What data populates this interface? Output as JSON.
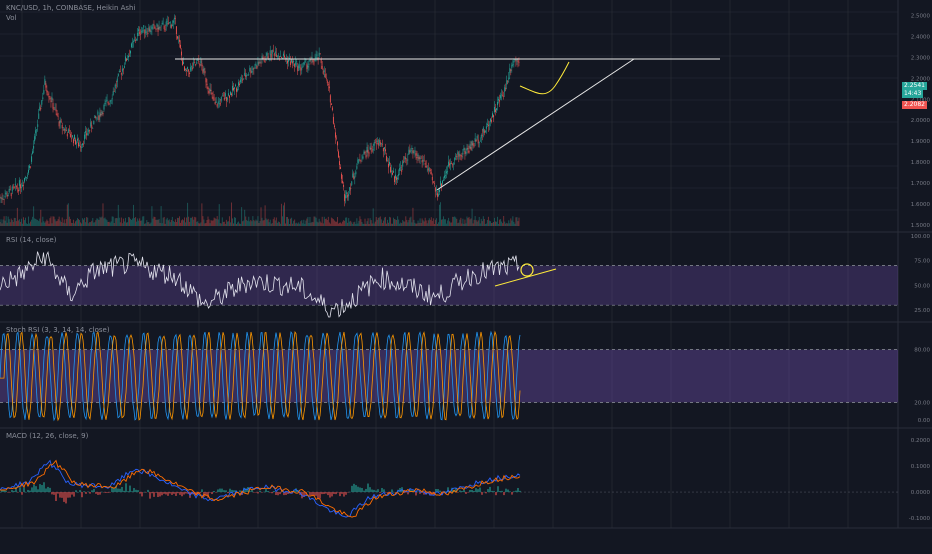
{
  "header": {
    "symbol_line": "KNC/USD, 1h, COINBASE, Heikin Ashi",
    "volume_label": "Vol"
  },
  "price_badges": {
    "last": "2.2541",
    "countdown": "14:43",
    "line": "2.2082"
  },
  "colors": {
    "background": "#131722",
    "grid": "#2a2e39",
    "up": "#26a69a",
    "down": "#ef5350",
    "rsi_line": "#e1e1ec",
    "band_fill": "#7e57c2",
    "stoch_k": "#2196f3",
    "stoch_d": "#ff9800",
    "macd_line": "#2962ff",
    "signal_line": "#ff6d00",
    "annotation_white": "#e8e8e8",
    "annotation_yellow": "#ffeb3b"
  },
  "chart_data": [
    {
      "type": "candlestick",
      "title": "KNC/USD, 1h, COINBASE, Heikin Ashi",
      "y_tick_labels": [
        "2.5000",
        "2.4000",
        "2.3000",
        "2.2000",
        "2.1000",
        "2.0000",
        "1.9000",
        "1.8000",
        "1.7000",
        "1.6000",
        "1.5000"
      ],
      "ylim": [
        1.5,
        2.55
      ],
      "candles_count": 510,
      "approx_close_path": [
        {
          "x": 0,
          "y": 1.63
        },
        {
          "x": 12,
          "y": 1.66
        },
        {
          "x": 22,
          "y": 1.7
        },
        {
          "x": 30,
          "y": 1.78
        },
        {
          "x": 45,
          "y": 2.18
        },
        {
          "x": 60,
          "y": 1.98
        },
        {
          "x": 80,
          "y": 1.88
        },
        {
          "x": 95,
          "y": 2.0
        },
        {
          "x": 110,
          "y": 2.1
        },
        {
          "x": 125,
          "y": 2.28
        },
        {
          "x": 140,
          "y": 2.43
        },
        {
          "x": 160,
          "y": 2.44
        },
        {
          "x": 175,
          "y": 2.47
        },
        {
          "x": 185,
          "y": 2.22
        },
        {
          "x": 200,
          "y": 2.28
        },
        {
          "x": 215,
          "y": 2.07
        },
        {
          "x": 235,
          "y": 2.15
        },
        {
          "x": 250,
          "y": 2.24
        },
        {
          "x": 275,
          "y": 2.33
        },
        {
          "x": 300,
          "y": 2.25
        },
        {
          "x": 320,
          "y": 2.3
        },
        {
          "x": 330,
          "y": 2.12
        },
        {
          "x": 345,
          "y": 1.62
        },
        {
          "x": 360,
          "y": 1.82
        },
        {
          "x": 380,
          "y": 1.9
        },
        {
          "x": 395,
          "y": 1.72
        },
        {
          "x": 410,
          "y": 1.85
        },
        {
          "x": 425,
          "y": 1.8
        },
        {
          "x": 437,
          "y": 1.65
        },
        {
          "x": 450,
          "y": 1.8
        },
        {
          "x": 470,
          "y": 1.87
        },
        {
          "x": 485,
          "y": 1.95
        },
        {
          "x": 495,
          "y": 2.05
        },
        {
          "x": 505,
          "y": 2.15
        },
        {
          "x": 512,
          "y": 2.28
        },
        {
          "x": 520,
          "y": 2.3
        }
      ],
      "annotations": [
        "horizontal resistance line",
        "rising support trendline",
        "projection curve (yellow)"
      ]
    },
    {
      "type": "line",
      "title": "RSI (14, close)",
      "y_tick_labels": [
        "100.00",
        "75.00",
        "50.00",
        "25.00"
      ],
      "bands": [
        70,
        30
      ],
      "ylim": [
        15,
        100
      ],
      "approx_values": [
        {
          "x": 0,
          "y": 52
        },
        {
          "x": 20,
          "y": 60
        },
        {
          "x": 45,
          "y": 80
        },
        {
          "x": 70,
          "y": 40
        },
        {
          "x": 95,
          "y": 65
        },
        {
          "x": 130,
          "y": 72
        },
        {
          "x": 175,
          "y": 60
        },
        {
          "x": 205,
          "y": 30
        },
        {
          "x": 250,
          "y": 55
        },
        {
          "x": 300,
          "y": 48
        },
        {
          "x": 330,
          "y": 25
        },
        {
          "x": 345,
          "y": 30
        },
        {
          "x": 380,
          "y": 58
        },
        {
          "x": 405,
          "y": 50
        },
        {
          "x": 437,
          "y": 38
        },
        {
          "x": 470,
          "y": 60
        },
        {
          "x": 495,
          "y": 66
        },
        {
          "x": 520,
          "y": 70
        }
      ]
    },
    {
      "type": "line",
      "title": "Stoch RSI (3, 3, 14, 14, close)",
      "y_tick_labels": [
        "80.00",
        "20.00",
        "0.00"
      ],
      "bands": [
        80,
        20
      ],
      "ylim": [
        0,
        100
      ],
      "series": [
        {
          "name": "%K",
          "oscillating_peaks": 34
        },
        {
          "name": "%D",
          "oscillating_peaks": 34
        }
      ]
    },
    {
      "type": "bar",
      "title": "MACD (12, 26, close, 9)",
      "y_tick_labels": [
        "0.2000",
        "0.1000",
        "0.0000",
        "-0.1000"
      ],
      "ylim": [
        -0.13,
        0.23
      ],
      "approx_macd": [
        {
          "x": 0,
          "y": 0.01
        },
        {
          "x": 30,
          "y": 0.04
        },
        {
          "x": 48,
          "y": 0.12
        },
        {
          "x": 70,
          "y": 0.03
        },
        {
          "x": 110,
          "y": 0.02
        },
        {
          "x": 135,
          "y": 0.09
        },
        {
          "x": 160,
          "y": 0.05
        },
        {
          "x": 185,
          "y": 0.0
        },
        {
          "x": 210,
          "y": -0.03
        },
        {
          "x": 260,
          "y": 0.02
        },
        {
          "x": 300,
          "y": 0.0
        },
        {
          "x": 325,
          "y": -0.06
        },
        {
          "x": 345,
          "y": -0.1
        },
        {
          "x": 370,
          "y": -0.02
        },
        {
          "x": 410,
          "y": 0.01
        },
        {
          "x": 440,
          "y": -0.01
        },
        {
          "x": 480,
          "y": 0.04
        },
        {
          "x": 520,
          "y": 0.07
        }
      ]
    }
  ]
}
